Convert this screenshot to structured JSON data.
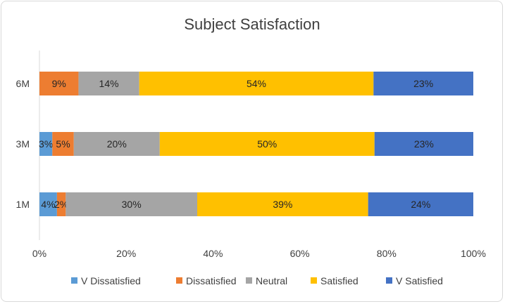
{
  "chart_data": {
    "type": "bar",
    "orientation": "horizontal",
    "stacked": "percent",
    "title": "Subject Satisfaction",
    "categories": [
      "6M",
      "3M",
      "1M"
    ],
    "series": [
      {
        "name": "V Dissatisfied",
        "color": "#5b9bd5",
        "values": [
          0,
          3,
          4
        ],
        "labels": [
          "",
          "3%",
          "4%"
        ]
      },
      {
        "name": "Dissatisfied",
        "color": "#ed7d31",
        "values": [
          9,
          5,
          2
        ],
        "labels": [
          "9%",
          "5%",
          "2%"
        ]
      },
      {
        "name": "Neutral",
        "color": "#a5a5a5",
        "values": [
          14,
          20,
          30
        ],
        "labels": [
          "14%",
          "20%",
          "30%"
        ]
      },
      {
        "name": "Satisfied",
        "color": "#ffc000",
        "values": [
          54,
          50,
          39
        ],
        "labels": [
          "54%",
          "50%",
          "39%"
        ]
      },
      {
        "name": "V Satisfied",
        "color": "#4472c4",
        "values": [
          23,
          23,
          24
        ],
        "labels": [
          "23%",
          "23%",
          "24%"
        ]
      }
    ],
    "xlim": [
      0,
      100
    ],
    "xticks": [
      "0%",
      "20%",
      "40%",
      "60%",
      "80%",
      "100%"
    ],
    "legend_position": "bottom",
    "grid": false
  }
}
